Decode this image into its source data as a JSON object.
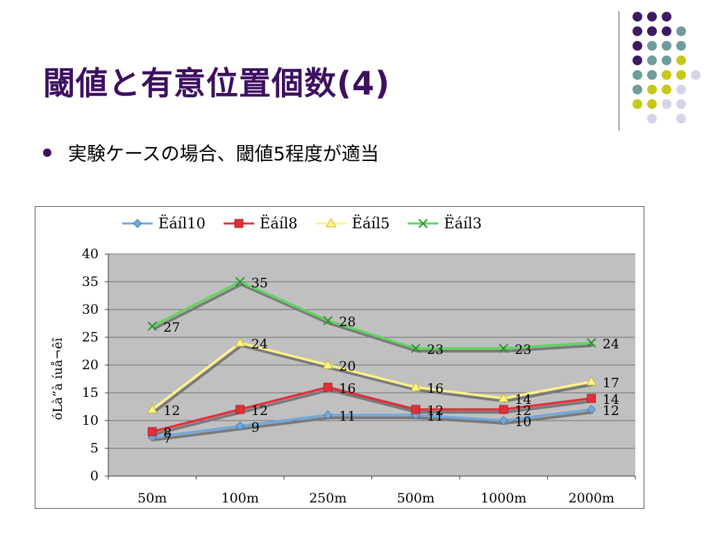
{
  "slide": {
    "title": "閾値と有意位置個数(4)",
    "bullet": "実験ケースの場合、閾値5程度が適当"
  },
  "colors": {
    "title": "#3d1060",
    "deco_purple": "#3e1a63",
    "deco_teal": "#6f9c9c",
    "deco_yellow": "#c8c81c",
    "deco_lavender": "#d6d4e8",
    "plot_bg": "#c0c0c0"
  },
  "chart_data": {
    "type": "line",
    "title": "",
    "xlabel": "",
    "ylabel": "óLà”à íuå¬êî",
    "categories": [
      "50m",
      "100m",
      "250m",
      "500m",
      "1000m",
      "2000m"
    ],
    "ylim": [
      0,
      40
    ],
    "yticks": [
      0,
      5,
      10,
      15,
      20,
      25,
      30,
      35,
      40
    ],
    "grid": true,
    "legend_position": "top",
    "series": [
      {
        "name": "Ëáíl10",
        "color": "#6fa8dc",
        "marker": "diamond",
        "values": [
          7,
          9,
          11,
          11,
          10,
          12
        ]
      },
      {
        "name": "Ëáíl8",
        "color": "#e0303a",
        "marker": "square",
        "values": [
          8,
          12,
          16,
          12,
          12,
          14
        ]
      },
      {
        "name": "Ëáíl5",
        "color": "#fff28a",
        "marker": "triangle",
        "values": [
          12,
          24,
          20,
          16,
          14,
          17
        ]
      },
      {
        "name": "Ëáíl3",
        "color": "#5fd45f",
        "marker": "x",
        "values": [
          27,
          35,
          28,
          23,
          23,
          24
        ]
      }
    ]
  }
}
